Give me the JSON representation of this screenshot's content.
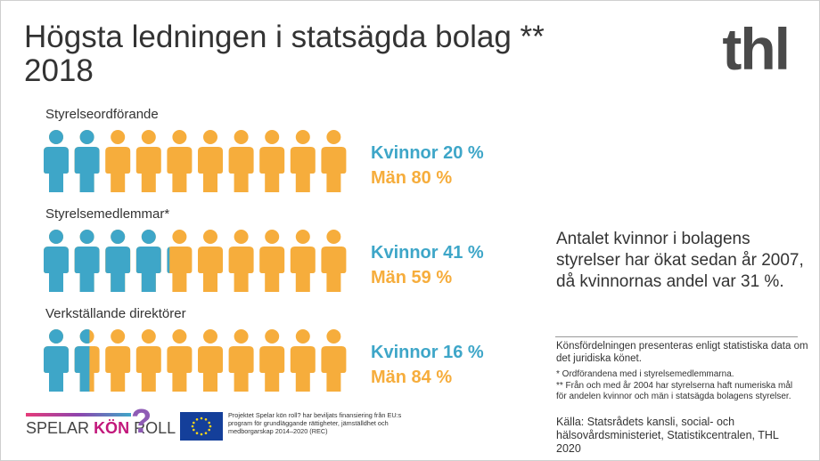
{
  "header": {
    "title": "Högsta ledningen i statsägda bolag **",
    "year": "2018",
    "logo": "thl"
  },
  "chart_data": {
    "type": "pictogram",
    "categories": [
      "Styrelseordförande",
      "Styrelsemedlemmar*",
      "Verkställande direktörer"
    ],
    "series": [
      {
        "color": "#3ea6c8",
        "values": [
          20,
          41,
          16
        ],
        "value_labels": [
          "Kvinnor 20 %",
          "Kvinnor 41 %",
          "Kvinnor 16 %"
        ]
      },
      {
        "color": "#f6ad3c",
        "values": [
          80,
          59,
          84
        ],
        "value_labels": [
          "Män 80 %",
          "Män 59 %",
          "Män 84 %"
        ]
      }
    ]
  },
  "side": {
    "text": "Antalet kvinnor i bolagens styrelser har ökat sedan år 2007, då kvinnornas andel var 31 %.",
    "note": "Könsfördelningen presenteras enligt statistiska data om det juridiska könet.",
    "footnotes": [
      "* Ordförandena med i styrelsemedlemmarna.",
      "** Från och med år 2004 har styrelserna haft numeriska mål för andelen kvinnor och män i statsägda bolagens styrelser."
    ],
    "source": "Källa:  Statsrådets kansli, social- och hälsovårdsministeriet, Statistikcentralen, THL 2020"
  },
  "footer": {
    "logo_words": [
      "SPELAR",
      "KÖN",
      "ROLL"
    ],
    "logo_mark": "?",
    "eu_text": "Projektet Spelar kön roll? har beviljats finansiering från EU:s program för grundläggande rättigheter, jämställdhet och medborgarskap 2014–2020 (REC)"
  }
}
